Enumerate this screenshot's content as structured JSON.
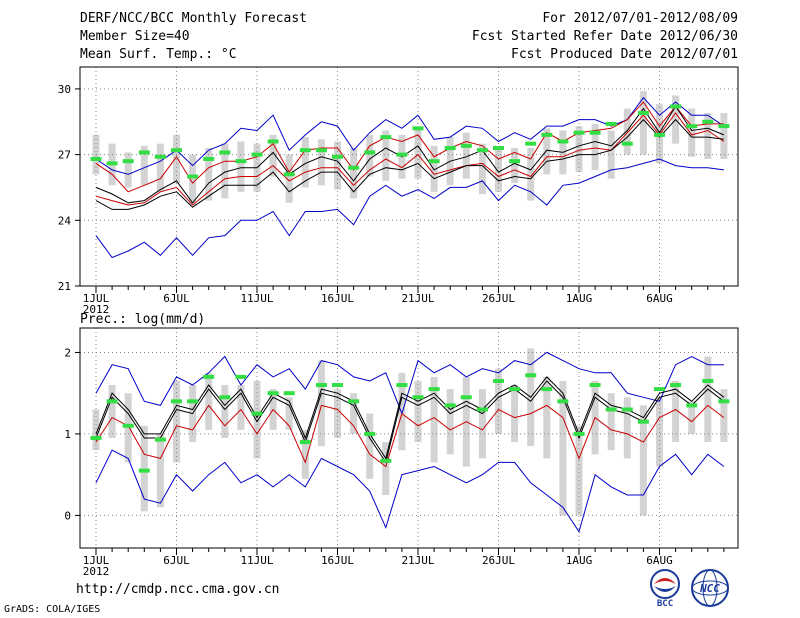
{
  "header": {
    "title": "DERF/NCC/BCC Monthly Forecast",
    "member_size": "Member Size=40",
    "variable": "Mean Surf. Temp.: °C",
    "period": "For 2012/07/01-2012/08/09",
    "started": "Fcst Started Refer Date 2012/06/30",
    "produced": "Fcst Produced Date 2012/07/01"
  },
  "footer": {
    "url": "http://cmdp.ncc.cma.gov.cn",
    "credit": "GrADS: COLA/IGES",
    "logo_bcc_text": "BCC",
    "logo_ncc_text": "NCC"
  },
  "colors": {
    "ensemble_range": "#0000cc",
    "mean": "#000000",
    "spread": "#cc0000",
    "observation": "#33dd44",
    "box": "#d3d3d3",
    "grid": "#888888"
  },
  "chart_data": [
    {
      "type": "line",
      "title": "Mean Surf. Temp.: °C",
      "x_ticks": [
        "1JUL",
        "6JUL",
        "11JUL",
        "16JUL",
        "21JUL",
        "26JUL",
        "1AUG",
        "6AUG"
      ],
      "x_year": "2012",
      "days": 40,
      "ylim": [
        21,
        31
      ],
      "yticks": [
        21,
        24,
        27,
        30
      ],
      "series": [
        {
          "name": "max",
          "values": [
            26.8,
            26.3,
            26.1,
            26.4,
            26.7,
            27.2,
            26.5,
            27.2,
            27.5,
            28.2,
            28.1,
            28.8,
            27.2,
            27.9,
            28.5,
            28.3,
            27.2,
            28,
            28.6,
            28.2,
            28.8,
            27.7,
            27.8,
            28.3,
            28.2,
            27.6,
            28,
            27.7,
            28.3,
            28.3,
            28.6,
            28.6,
            28.3,
            28.6,
            29.6,
            28.8,
            29.4,
            28.8,
            28.8,
            28.3
          ]
        },
        {
          "name": "upper",
          "values": [
            26.6,
            26.1,
            25.3,
            25.6,
            25.9,
            26.9,
            25.7,
            26.4,
            26.7,
            26.7,
            26.9,
            27.5,
            26.2,
            27.2,
            27.3,
            27.3,
            26.3,
            27.4,
            27.8,
            27.6,
            27.9,
            26.9,
            27.3,
            27.6,
            27.4,
            26.8,
            27.1,
            26.8,
            28,
            27.6,
            28,
            28.1,
            28.2,
            28.6,
            29.4,
            28.3,
            29.2,
            28.3,
            28.4,
            28.4
          ]
        },
        {
          "name": "mean",
          "values": [
            25.5,
            25.2,
            24.8,
            24.9,
            25.4,
            25.8,
            24.8,
            25.7,
            26.2,
            26.4,
            26.4,
            27.1,
            26.1,
            26.6,
            26.9,
            26.7,
            25.8,
            26.8,
            27.3,
            26.9,
            27.4,
            26.3,
            26.7,
            26.9,
            27.2,
            26.2,
            26.6,
            26.3,
            27.2,
            27.1,
            27.4,
            27.6,
            27.4,
            28.1,
            29.1,
            28,
            29.2,
            28.1,
            28.2,
            27.9
          ]
        },
        {
          "name": "mean2",
          "values": [
            25.1,
            24.9,
            24.7,
            24.8,
            25.3,
            25.5,
            24.7,
            25.3,
            25.9,
            26,
            26,
            26.5,
            25.8,
            26.2,
            26.4,
            26.4,
            25.6,
            26.3,
            26.8,
            26.4,
            27,
            26.1,
            26.3,
            26.5,
            26.6,
            26,
            26.3,
            26,
            26.9,
            26.9,
            27.2,
            27.3,
            27.2,
            28,
            28.8,
            27.9,
            28.9,
            27.9,
            28.1,
            27.6
          ]
        },
        {
          "name": "lower",
          "values": [
            24.9,
            24.5,
            24.5,
            24.7,
            25.1,
            25.3,
            24.6,
            25.1,
            25.6,
            25.6,
            25.6,
            26.2,
            25.3,
            25.8,
            26.2,
            26.2,
            25.3,
            26.1,
            26.4,
            26.3,
            26.6,
            25.9,
            26.2,
            26.5,
            26.5,
            25.8,
            26,
            25.9,
            26.7,
            26.8,
            27,
            27,
            27.2,
            27.8,
            28.6,
            27.8,
            28.6,
            27.8,
            27.8,
            27.7
          ]
        },
        {
          "name": "min",
          "values": [
            23.3,
            22.3,
            22.6,
            23,
            22.4,
            23.2,
            22.4,
            23.2,
            23.3,
            24,
            24,
            24.4,
            23.3,
            24.4,
            24.4,
            24.5,
            23.8,
            25.1,
            25.6,
            25.1,
            25.4,
            25,
            25.5,
            25.5,
            25.8,
            24.9,
            25.6,
            25.3,
            24.7,
            25.6,
            25.7,
            26,
            26.3,
            26.4,
            26.6,
            26.8,
            26.5,
            26.4,
            26.4,
            26.3
          ]
        }
      ],
      "obs": [
        26.8,
        26.6,
        26.7,
        27.1,
        26.9,
        27.2,
        26,
        26.8,
        27.1,
        26.7,
        27,
        27.6,
        26.1,
        27.2,
        27.2,
        26.9,
        26.4,
        27.1,
        27.8,
        27,
        28.2,
        26.7,
        27.3,
        27.4,
        27.2,
        27.3,
        26.7,
        27.5,
        27.9,
        27.6,
        28,
        28,
        28.4,
        27.5,
        28.9,
        27.9,
        29.2,
        28.3,
        28.5,
        28.3
      ],
      "boxes": [
        [
          26.1,
          27.9
        ],
        [
          25.6,
          27.5
        ],
        [
          25.5,
          27.1
        ],
        [
          25.6,
          27.4
        ],
        [
          25.3,
          27.5
        ],
        [
          25.7,
          27.9
        ],
        [
          24.7,
          27
        ],
        [
          24.9,
          27.3
        ],
        [
          25,
          27.5
        ],
        [
          25.3,
          27.6
        ],
        [
          25.3,
          27.5
        ],
        [
          26,
          27.9
        ],
        [
          24.8,
          27
        ],
        [
          25.5,
          27.8
        ],
        [
          25.6,
          27.7
        ],
        [
          25.4,
          27.6
        ],
        [
          25,
          27.3
        ],
        [
          26,
          27.9
        ],
        [
          25.8,
          28.1
        ],
        [
          25.9,
          27.9
        ],
        [
          25.9,
          28.2
        ],
        [
          25.3,
          27.4
        ],
        [
          25.6,
          27.8
        ],
        [
          25.9,
          28
        ],
        [
          25.2,
          27.5
        ],
        [
          25.3,
          27.4
        ],
        [
          25.7,
          27.3
        ],
        [
          24.9,
          27.3
        ],
        [
          26.1,
          28.2
        ],
        [
          26.1,
          28.1
        ],
        [
          26.2,
          28.3
        ],
        [
          26.3,
          28.4
        ],
        [
          25.9,
          28.1
        ],
        [
          27,
          29.1
        ],
        [
          27,
          29.9
        ],
        [
          26.6,
          29.3
        ],
        [
          27.5,
          29.7
        ],
        [
          26.9,
          29.1
        ],
        [
          26.8,
          28.9
        ],
        [
          26.8,
          28.9
        ]
      ]
    },
    {
      "type": "line",
      "title": "Prec.: log(mm/d)",
      "x_ticks": [
        "1JUL",
        "6JUL",
        "11JUL",
        "16JUL",
        "21JUL",
        "26JUL",
        "1AUG",
        "6AUG"
      ],
      "x_year": "2012",
      "days": 40,
      "ylim": [
        -0.4,
        2.3
      ],
      "yticks": [
        0,
        1,
        2
      ],
      "series": [
        {
          "name": "max",
          "values": [
            1.5,
            1.85,
            1.8,
            1.4,
            1.35,
            1.7,
            1.6,
            1.75,
            1.95,
            1.6,
            1.85,
            1.7,
            1.8,
            1.55,
            1.9,
            1.85,
            1.7,
            1.65,
            1.75,
            1.25,
            1.9,
            1.75,
            1.85,
            1.7,
            1.8,
            1.75,
            1.9,
            1.85,
            2,
            1.9,
            1.8,
            1.75,
            1.75,
            1.5,
            1.45,
            1.4,
            1.85,
            1.95,
            1.85,
            1.85
          ]
        },
        {
          "name": "mean",
          "values": [
            1,
            1.5,
            1.3,
            1,
            1,
            1.35,
            1.3,
            1.6,
            1.35,
            1.55,
            1.2,
            1.5,
            1.4,
            0.95,
            1.55,
            1.5,
            1.4,
            1,
            0.7,
            1.5,
            1.4,
            1.5,
            1.3,
            1.4,
            1.3,
            1.5,
            1.6,
            1.45,
            1.7,
            1.5,
            1,
            1.5,
            1.35,
            1.3,
            1.2,
            1.5,
            1.55,
            1.4,
            1.6,
            1.45
          ]
        },
        {
          "name": "lower",
          "values": [
            0.95,
            1.45,
            1.25,
            0.95,
            0.95,
            1.3,
            1.25,
            1.55,
            1.3,
            1.5,
            1.15,
            1.45,
            1.35,
            0.9,
            1.5,
            1.45,
            1.35,
            0.95,
            0.65,
            1.45,
            1.35,
            1.45,
            1.25,
            1.35,
            1.25,
            1.45,
            1.55,
            1.4,
            1.65,
            1.45,
            0.95,
            1.45,
            1.3,
            1.25,
            1.15,
            1.45,
            1.5,
            1.35,
            1.55,
            1.4
          ]
        },
        {
          "name": "spread",
          "values": [
            0.9,
            1.2,
            1.1,
            0.75,
            0.7,
            1.1,
            1.05,
            1.35,
            1.1,
            1.3,
            1,
            1.3,
            1.1,
            0.65,
            1.35,
            1.3,
            1.1,
            0.75,
            0.6,
            1.25,
            1.1,
            1.2,
            1.05,
            1.15,
            1.05,
            1.3,
            1.2,
            1.25,
            1.35,
            1.2,
            0.7,
            1.2,
            1.05,
            1,
            0.9,
            1.2,
            1.3,
            1.15,
            1.35,
            1.2
          ]
        },
        {
          "name": "min",
          "values": [
            0.4,
            0.8,
            0.7,
            0.2,
            0.15,
            0.5,
            0.3,
            0.5,
            0.65,
            0.4,
            0.5,
            0.35,
            0.5,
            0.35,
            0.7,
            0.6,
            0.5,
            0.3,
            -0.15,
            0.5,
            0.55,
            0.6,
            0.5,
            0.4,
            0.5,
            0.65,
            0.65,
            0.4,
            0.25,
            0.1,
            -0.2,
            0.5,
            0.35,
            0.25,
            0.25,
            0.6,
            0.75,
            0.5,
            0.75,
            0.6
          ]
        }
      ],
      "obs": [
        0.95,
        1.4,
        1.1,
        0.55,
        0.93,
        1.4,
        1.4,
        1.7,
        1.45,
        1.7,
        1.25,
        1.5,
        1.5,
        0.9,
        1.6,
        1.6,
        1.4,
        1,
        0.67,
        1.6,
        1.45,
        1.55,
        1.35,
        1.45,
        1.3,
        1.65,
        1.55,
        1.72,
        1.55,
        1.4,
        1,
        1.6,
        1.3,
        1.3,
        1.15,
        1.55,
        1.6,
        1.35,
        1.65,
        1.4
      ],
      "boxes": [
        [
          0.8,
          1.3
        ],
        [
          0.95,
          1.6
        ],
        [
          0.65,
          1.5
        ],
        [
          0.05,
          1.1
        ],
        [
          0.1,
          1
        ],
        [
          0.65,
          1.65
        ],
        [
          0.9,
          1.6
        ],
        [
          1.05,
          1.75
        ],
        [
          0.95,
          1.6
        ],
        [
          1.05,
          1.6
        ],
        [
          0.7,
          1.65
        ],
        [
          1.05,
          1.55
        ],
        [
          1.05,
          1.45
        ],
        [
          0.45,
          1.05
        ],
        [
          0.85,
          1.9
        ],
        [
          0.95,
          1.55
        ],
        [
          1,
          1.5
        ],
        [
          0.45,
          1.25
        ],
        [
          0.25,
          0.9
        ],
        [
          0.8,
          1.75
        ],
        [
          0.9,
          1.65
        ],
        [
          0.65,
          1.7
        ],
        [
          0.75,
          1.55
        ],
        [
          0.6,
          1.7
        ],
        [
          0.7,
          1.55
        ],
        [
          1,
          1.8
        ],
        [
          0.9,
          1.6
        ],
        [
          0.85,
          2.05
        ],
        [
          0.7,
          1.7
        ],
        [
          0,
          1.65
        ],
        [
          0,
          1.1
        ],
        [
          0.75,
          1.65
        ],
        [
          0.8,
          1.5
        ],
        [
          0.7,
          1.45
        ],
        [
          0,
          1.35
        ],
        [
          0.6,
          1.45
        ],
        [
          0.9,
          1.65
        ],
        [
          1,
          1.4
        ],
        [
          0.9,
          1.95
        ],
        [
          0.9,
          1.55
        ]
      ]
    }
  ]
}
